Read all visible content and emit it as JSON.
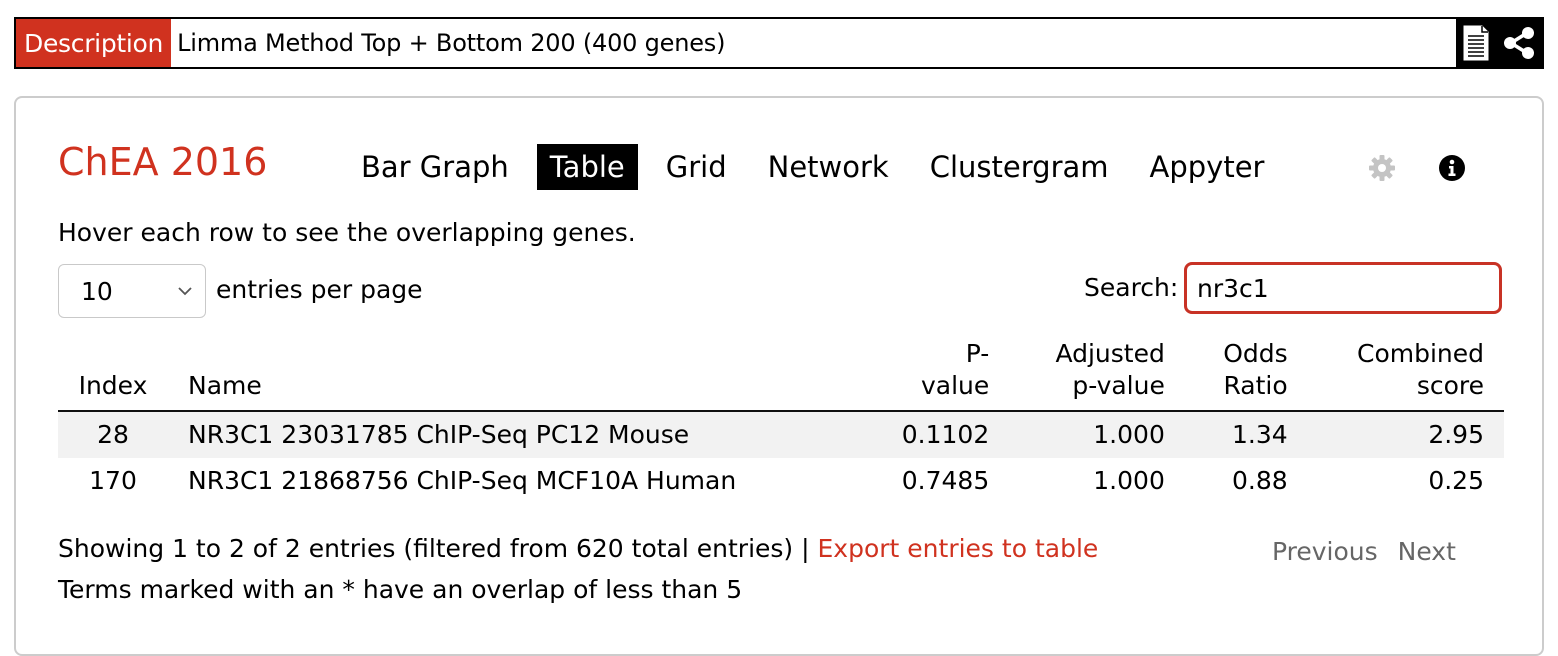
{
  "description": {
    "label": "Description",
    "text": "Limma Method Top + Bottom 200 (400 genes)",
    "icons": [
      "document-icon",
      "share-icon"
    ]
  },
  "library": {
    "title": "ChEA 2016",
    "tabs": [
      "Bar Graph",
      "Table",
      "Grid",
      "Network",
      "Clustergram",
      "Appyter"
    ],
    "active_tab": "Table",
    "icons": [
      "gear-icon",
      "info-icon"
    ]
  },
  "hint": "Hover each row to see the overlapping genes.",
  "length_menu": {
    "value": "10",
    "label": "entries per page"
  },
  "search": {
    "label": "Search:",
    "value": "nr3c1"
  },
  "table": {
    "headers": {
      "index": "Index",
      "name": "Name",
      "pvalue": [
        "P-",
        "value"
      ],
      "adj": [
        "Adjusted",
        "p-value"
      ],
      "odds": [
        "Odds",
        "Ratio"
      ],
      "combined": [
        "Combined",
        "score"
      ]
    },
    "rows": [
      {
        "index": "28",
        "name": "NR3C1 23031785 ChIP-Seq PC12 Mouse",
        "pvalue": "0.1102",
        "adj": "1.000",
        "odds": "1.34",
        "combined": "2.95"
      },
      {
        "index": "170",
        "name": "NR3C1 21868756 ChIP-Seq MCF10A Human",
        "pvalue": "0.7485",
        "adj": "1.000",
        "odds": "0.88",
        "combined": "0.25"
      }
    ]
  },
  "footer": {
    "info": "Showing 1 to 2 of 2 entries (filtered from 620 total entries) |",
    "export_link": "Export entries to table",
    "overlap_note": "Terms marked with an * have an overlap of less than 5",
    "previous": "Previous",
    "next": "Next"
  },
  "colors": {
    "accent": "#d0321f",
    "active_tab_bg": "#000000",
    "stripe": "#f2f2f2"
  }
}
